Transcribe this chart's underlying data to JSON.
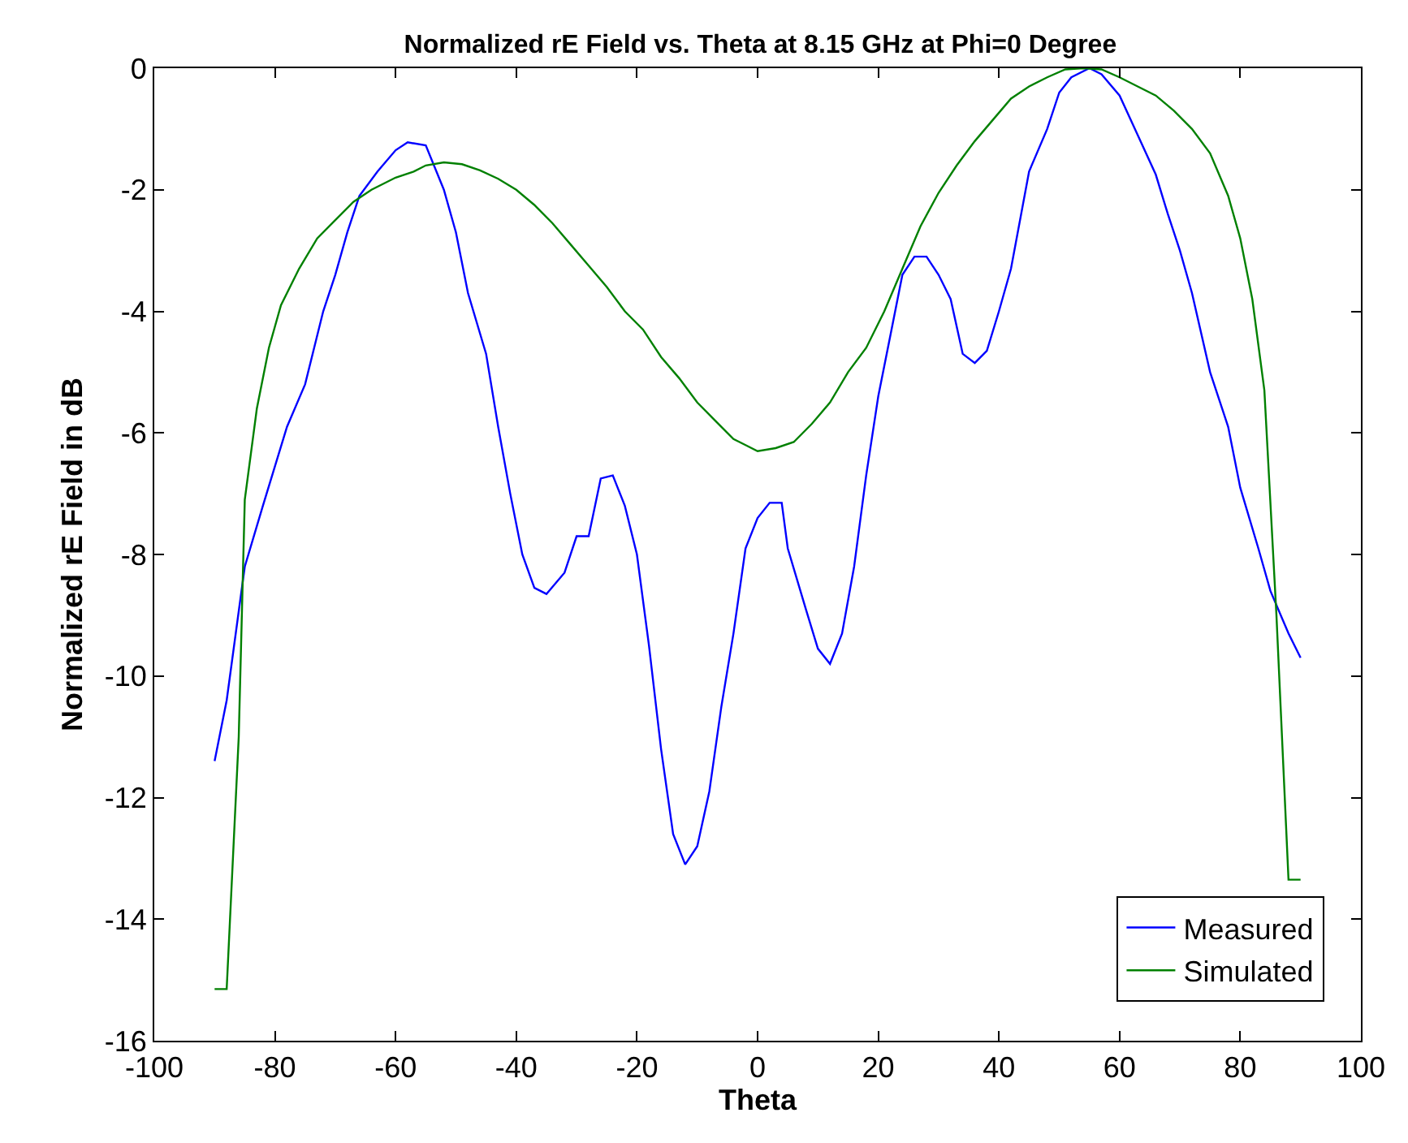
{
  "chart_data": {
    "type": "line",
    "title": "Normalized rE Field vs. Theta at 8.15 GHz at Phi=0 Degree",
    "xlabel": "Theta",
    "ylabel": "Normalized rE Field in dB",
    "xlim": [
      -100,
      100
    ],
    "xticks": [
      -100,
      -80,
      -60,
      -40,
      -20,
      0,
      20,
      40,
      60,
      80,
      100
    ],
    "ylim": [
      -16,
      0
    ],
    "yticks": [
      -16,
      -14,
      -12,
      -10,
      -8,
      -6,
      -4,
      -2,
      0
    ],
    "grid": false,
    "legend": "bottom right",
    "marker": "none",
    "line_style": "solid",
    "series": [
      {
        "name": "Measured",
        "color": "#0000ff",
        "x": [
          -90,
          -88,
          -85,
          -82,
          -78,
          -75,
          -72,
          -70,
          -68,
          -66,
          -63,
          -60,
          -58,
          -55,
          -52,
          -50,
          -48,
          -45,
          -43,
          -41,
          -39,
          -37,
          -35,
          -32,
          -30,
          -28,
          -26,
          -24,
          -22,
          -20,
          -18,
          -16,
          -14,
          -12,
          -10,
          -8,
          -6,
          -4,
          -2,
          0,
          2,
          4,
          5,
          8,
          10,
          12,
          14,
          16,
          18,
          20,
          22,
          24,
          26,
          28,
          30,
          32,
          34,
          36,
          38,
          40,
          42,
          45,
          48,
          50,
          52,
          55,
          57,
          60,
          63,
          66,
          68,
          70,
          72,
          75,
          78,
          80,
          83,
          85,
          88,
          90
        ],
        "values": [
          -11.4,
          -10.4,
          -8.2,
          -7.2,
          -5.9,
          -5.2,
          -4.0,
          -3.4,
          -2.7,
          -2.1,
          -1.7,
          -1.35,
          -1.22,
          -1.27,
          -2.0,
          -2.7,
          -3.7,
          -4.7,
          -5.9,
          -7.0,
          -8.0,
          -8.55,
          -8.65,
          -8.3,
          -7.7,
          -7.7,
          -6.75,
          -6.7,
          -7.2,
          -8.0,
          -9.5,
          -11.2,
          -12.6,
          -13.1,
          -12.8,
          -11.9,
          -10.5,
          -9.3,
          -7.9,
          -7.4,
          -7.15,
          -7.15,
          -7.9,
          -8.9,
          -9.55,
          -9.8,
          -9.3,
          -8.2,
          -6.7,
          -5.4,
          -4.4,
          -3.4,
          -3.1,
          -3.1,
          -3.4,
          -3.8,
          -4.7,
          -4.85,
          -4.65,
          -4.0,
          -3.3,
          -1.7,
          -1.0,
          -0.4,
          -0.15,
          0,
          -0.1,
          -0.45,
          -1.1,
          -1.75,
          -2.4,
          -3.0,
          -3.7,
          -5.0,
          -5.9,
          -6.9,
          -7.9,
          -8.6,
          -9.3,
          -9.7
        ]
      },
      {
        "name": "Simulated",
        "color": "#008000",
        "x": [
          -90,
          -88,
          -86,
          -85,
          -83,
          -81,
          -79,
          -76,
          -73,
          -70,
          -67,
          -64,
          -60,
          -57,
          -55,
          -52,
          -49,
          -46,
          -43,
          -40,
          -37,
          -34,
          -31,
          -28,
          -25,
          -22,
          -19,
          -16,
          -13,
          -10,
          -7,
          -4,
          -2,
          0,
          3,
          6,
          9,
          12,
          15,
          18,
          21,
          24,
          27,
          30,
          33,
          36,
          39,
          42,
          45,
          48,
          51,
          54,
          57,
          60,
          63,
          66,
          69,
          72,
          75,
          78,
          80,
          82,
          84,
          86,
          88,
          90
        ],
        "values": [
          -15.15,
          -15.15,
          -11.0,
          -7.1,
          -5.6,
          -4.6,
          -3.9,
          -3.3,
          -2.8,
          -2.5,
          -2.2,
          -2.0,
          -1.8,
          -1.7,
          -1.6,
          -1.55,
          -1.58,
          -1.68,
          -1.82,
          -2.0,
          -2.25,
          -2.55,
          -2.9,
          -3.25,
          -3.6,
          -4.0,
          -4.3,
          -4.75,
          -5.1,
          -5.5,
          -5.8,
          -6.1,
          -6.2,
          -6.3,
          -6.25,
          -6.15,
          -5.85,
          -5.5,
          -5.0,
          -4.6,
          -4.0,
          -3.3,
          -2.6,
          -2.05,
          -1.6,
          -1.2,
          -0.85,
          -0.5,
          -0.3,
          -0.15,
          -0.02,
          0,
          -0.02,
          -0.15,
          -0.3,
          -0.45,
          -0.7,
          -1.0,
          -1.4,
          -2.1,
          -2.8,
          -3.8,
          -5.3,
          -9.0,
          -13.35,
          -13.35
        ]
      }
    ]
  }
}
